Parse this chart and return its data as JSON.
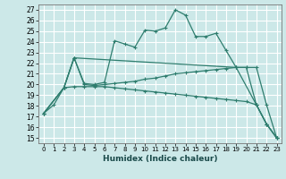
{
  "xlabel": "Humidex (Indice chaleur)",
  "bg_color": "#cce8e8",
  "grid_color": "#ffffff",
  "line_color": "#2e7d6e",
  "xlim": [
    -0.5,
    23.5
  ],
  "ylim": [
    14.5,
    27.5
  ],
  "xticks": [
    0,
    1,
    2,
    3,
    4,
    5,
    6,
    7,
    8,
    9,
    10,
    11,
    12,
    13,
    14,
    15,
    16,
    17,
    18,
    19,
    20,
    21,
    22,
    23
  ],
  "yticks": [
    15,
    16,
    17,
    18,
    19,
    20,
    21,
    22,
    23,
    24,
    25,
    26,
    27
  ],
  "series1": [
    [
      0,
      17.3
    ],
    [
      1,
      18.1
    ],
    [
      2,
      19.7
    ],
    [
      3,
      22.5
    ],
    [
      4,
      20.1
    ],
    [
      5,
      20.0
    ],
    [
      6,
      20.2
    ],
    [
      7,
      24.1
    ],
    [
      8,
      23.8
    ],
    [
      9,
      23.5
    ],
    [
      10,
      25.1
    ],
    [
      11,
      25.0
    ],
    [
      12,
      25.3
    ],
    [
      13,
      27.0
    ],
    [
      14,
      26.5
    ],
    [
      15,
      24.5
    ],
    [
      16,
      24.5
    ],
    [
      17,
      24.8
    ],
    [
      18,
      23.2
    ],
    [
      19,
      21.6
    ],
    [
      20,
      21.6
    ],
    [
      21,
      18.1
    ],
    [
      22,
      16.3
    ],
    [
      23,
      15.0
    ]
  ],
  "series2": [
    [
      0,
      17.3
    ],
    [
      2,
      19.7
    ],
    [
      3,
      22.5
    ],
    [
      4,
      20.0
    ],
    [
      5,
      19.9
    ],
    [
      6,
      20.0
    ],
    [
      7,
      20.1
    ],
    [
      8,
      20.2
    ],
    [
      9,
      20.3
    ],
    [
      10,
      20.5
    ],
    [
      11,
      20.6
    ],
    [
      12,
      20.8
    ],
    [
      13,
      21.0
    ],
    [
      14,
      21.1
    ],
    [
      15,
      21.2
    ],
    [
      16,
      21.3
    ],
    [
      17,
      21.4
    ],
    [
      18,
      21.5
    ],
    [
      19,
      21.6
    ],
    [
      20,
      21.6
    ],
    [
      21,
      21.6
    ],
    [
      22,
      18.1
    ],
    [
      23,
      15.0
    ]
  ],
  "series3": [
    [
      0,
      17.3
    ],
    [
      2,
      19.7
    ],
    [
      3,
      19.8
    ],
    [
      4,
      19.8
    ],
    [
      5,
      19.8
    ],
    [
      6,
      19.8
    ],
    [
      7,
      19.7
    ],
    [
      8,
      19.6
    ],
    [
      9,
      19.5
    ],
    [
      10,
      19.4
    ],
    [
      11,
      19.3
    ],
    [
      12,
      19.2
    ],
    [
      13,
      19.1
    ],
    [
      14,
      19.0
    ],
    [
      15,
      18.9
    ],
    [
      16,
      18.8
    ],
    [
      17,
      18.7
    ],
    [
      18,
      18.6
    ],
    [
      19,
      18.5
    ],
    [
      20,
      18.4
    ],
    [
      21,
      18.1
    ],
    [
      22,
      16.3
    ],
    [
      23,
      15.0
    ]
  ],
  "series4": [
    [
      0,
      17.3
    ],
    [
      2,
      19.7
    ],
    [
      3,
      22.5
    ],
    [
      19,
      21.6
    ],
    [
      21,
      18.1
    ],
    [
      22,
      16.3
    ],
    [
      23,
      15.0
    ]
  ]
}
